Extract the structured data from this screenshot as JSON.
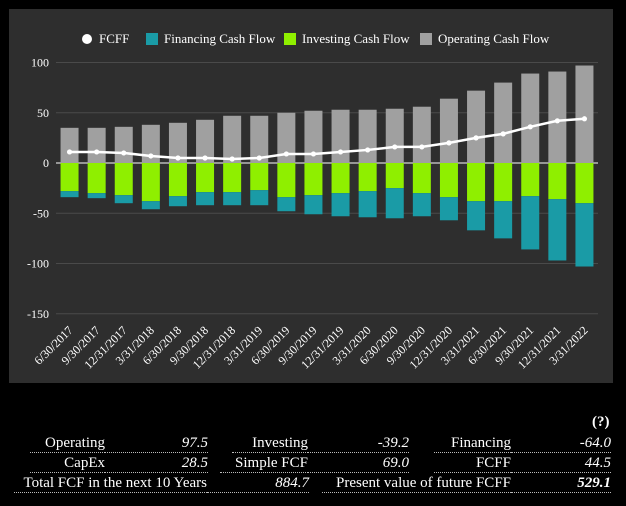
{
  "chart_data": {
    "type": "bar",
    "categories": [
      "6/30/2017",
      "9/30/2017",
      "12/31/2017",
      "3/31/2018",
      "6/30/2018",
      "9/30/2018",
      "12/31/2018",
      "3/31/2019",
      "6/30/2019",
      "9/30/2019",
      "12/31/2019",
      "3/31/2020",
      "6/30/2020",
      "9/30/2020",
      "12/31/2020",
      "3/31/2021",
      "6/30/2021",
      "9/30/2021",
      "12/31/2021",
      "3/31/2022"
    ],
    "series": [
      {
        "name": "FCFF",
        "type": "line",
        "color": "#ffffff",
        "values": [
          11,
          11,
          10,
          7,
          5,
          5,
          4,
          5,
          9,
          9,
          11,
          13,
          16,
          16,
          20,
          25,
          29,
          36,
          42,
          44
        ]
      },
      {
        "name": "Financing Cash Flow",
        "type": "bar",
        "color": "#1a9ba6",
        "values": [
          -6,
          -5,
          -8,
          -8,
          -10,
          -13,
          -13,
          -15,
          -14,
          -19,
          -23,
          -26,
          -30,
          -23,
          -23,
          -29,
          -37,
          -53,
          -61,
          -63
        ]
      },
      {
        "name": "Investing Cash Flow",
        "type": "bar",
        "color": "#8fef00",
        "values": [
          -28,
          -30,
          -32,
          -38,
          -33,
          -29,
          -29,
          -27,
          -34,
          -32,
          -30,
          -28,
          -25,
          -30,
          -34,
          -38,
          -38,
          -33,
          -36,
          -40
        ]
      },
      {
        "name": "Operating Cash Flow",
        "type": "bar",
        "color": "#a0a0a0",
        "values": [
          35,
          35,
          36,
          38,
          40,
          43,
          47,
          47,
          50,
          52,
          53,
          53,
          54,
          56,
          64,
          72,
          80,
          89,
          91,
          97
        ]
      }
    ],
    "yticks": [
      100,
      50,
      0,
      -50,
      -100,
      -150
    ],
    "ylim": [
      -150,
      100
    ],
    "legend_position": "top-center",
    "grid": true,
    "xlabel": "",
    "ylabel": ""
  },
  "summary": {
    "help": "(?)",
    "rows": [
      [
        {
          "label": "Operating",
          "value": "97.5",
          "bold": false
        },
        {
          "label": "Investing",
          "value": "-39.2",
          "bold": false
        },
        {
          "label": "Financing",
          "value": "-64.0",
          "bold": false
        }
      ],
      [
        {
          "label": "CapEx",
          "value": "28.5",
          "bold": false
        },
        {
          "label": "Simple FCF",
          "value": "69.0",
          "bold": false
        },
        {
          "label": "FCFF",
          "value": "44.5",
          "bold": false
        }
      ],
      [
        {
          "label": "Total FCF in the next 10 Years",
          "value": "884.7",
          "bold": false
        },
        {
          "label": "Present value of future FCFF",
          "value": "529.1",
          "bold": true
        }
      ]
    ]
  }
}
